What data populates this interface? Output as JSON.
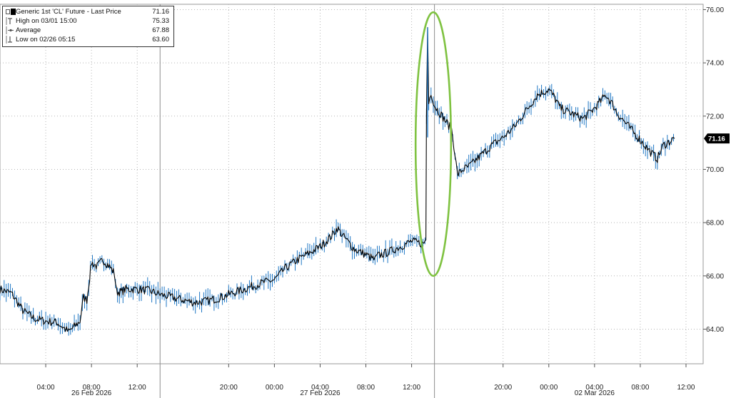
{
  "chart_data": {
    "type": "line",
    "series": [
      {
        "name": "Generic 1st 'CL' Future - Last Price",
        "color": "#000000",
        "highlight_color": "#1f77c4",
        "points": [
          [
            0.0,
            65.5
          ],
          [
            1.0,
            65.35
          ],
          [
            2.0,
            64.7
          ],
          [
            3.0,
            64.4
          ],
          [
            4.0,
            64.3
          ],
          [
            5.0,
            64.25
          ],
          [
            6.0,
            63.9
          ],
          [
            6.5,
            64.1
          ],
          [
            7.0,
            64.3
          ],
          [
            7.3,
            65.2
          ],
          [
            7.6,
            65.1
          ],
          [
            8.0,
            66.5
          ],
          [
            8.5,
            66.35
          ],
          [
            9.0,
            66.6
          ],
          [
            9.5,
            66.4
          ],
          [
            10.0,
            66.1
          ],
          [
            10.2,
            65.4
          ],
          [
            10.6,
            65.4
          ],
          [
            11.0,
            65.5
          ],
          [
            12.0,
            65.5
          ],
          [
            13.0,
            65.45
          ],
          [
            14.0,
            65.3
          ],
          [
            15.0,
            65.2
          ],
          [
            16.0,
            65.1
          ],
          [
            17.0,
            65.0
          ],
          [
            18.0,
            65.05
          ],
          [
            19.0,
            65.15
          ],
          [
            20.0,
            65.3
          ],
          [
            21.0,
            65.45
          ],
          [
            22.0,
            65.6
          ],
          [
            23.0,
            65.75
          ],
          [
            24.0,
            65.85
          ],
          [
            25.0,
            66.3
          ],
          [
            26.0,
            66.6
          ],
          [
            27.0,
            66.85
          ],
          [
            28.0,
            67.1
          ],
          [
            29.0,
            67.5
          ],
          [
            29.5,
            67.8
          ],
          [
            30.0,
            67.5
          ],
          [
            31.0,
            67.0
          ],
          [
            32.0,
            66.8
          ],
          [
            32.8,
            66.6
          ],
          [
            33.0,
            66.75
          ],
          [
            34.0,
            66.9
          ],
          [
            35.0,
            67.1
          ],
          [
            36.0,
            67.3
          ],
          [
            37.0,
            67.2
          ],
          [
            37.25,
            67.35
          ],
          [
            37.3,
            72.0
          ],
          [
            37.4,
            75.33
          ],
          [
            37.5,
            72.5
          ],
          [
            37.7,
            72.9
          ],
          [
            38.0,
            72.4
          ],
          [
            38.5,
            72.1
          ],
          [
            39.0,
            71.8
          ],
          [
            39.5,
            71.5
          ],
          [
            39.8,
            70.6
          ],
          [
            40.0,
            69.8
          ],
          [
            40.5,
            70.0
          ],
          [
            41.0,
            70.1
          ],
          [
            42.0,
            70.5
          ],
          [
            43.0,
            70.9
          ],
          [
            44.0,
            71.2
          ],
          [
            45.0,
            71.6
          ],
          [
            46.0,
            72.2
          ],
          [
            47.0,
            72.8
          ],
          [
            48.0,
            73.0
          ],
          [
            48.5,
            72.7
          ],
          [
            49.0,
            72.3
          ],
          [
            50.0,
            72.1
          ],
          [
            51.0,
            71.9
          ],
          [
            52.0,
            72.3
          ],
          [
            53.0,
            72.8
          ],
          [
            53.5,
            72.5
          ],
          [
            54.0,
            72.1
          ],
          [
            55.0,
            71.6
          ],
          [
            56.0,
            71.1
          ],
          [
            57.0,
            70.6
          ],
          [
            57.5,
            70.4
          ],
          [
            58.0,
            70.9
          ],
          [
            59.0,
            71.16
          ]
        ]
      }
    ],
    "legend": {
      "entries": [
        {
          "icon": "black-square-icon",
          "label": "Generic 1st 'CL' Future - Last Price",
          "value": "71.16"
        },
        {
          "icon": "high-marker-icon",
          "label": "High on 03/01 15:00",
          "value": "75.33"
        },
        {
          "icon": "average-marker-icon",
          "label": "Average",
          "value": "67.88"
        },
        {
          "icon": "low-marker-icon",
          "label": "Low on 02/26 05:15",
          "value": "63.60"
        }
      ],
      "placement": "top-left"
    },
    "y_axis": {
      "side": "right",
      "ylim": [
        62.7,
        76.2
      ],
      "ticks": [
        64,
        66,
        68,
        70,
        72,
        74,
        76
      ],
      "tick_labels": [
        "64.00",
        "66.00",
        "68.00",
        "70.00",
        "72.00",
        "74.00",
        "76.00"
      ]
    },
    "x_axis": {
      "unit": "hours since 26 Feb 2026 00:00",
      "xlim": [
        0,
        61.5
      ],
      "ticks": [
        4,
        8,
        12,
        20,
        24,
        28,
        32,
        36,
        44,
        48,
        52,
        56,
        60
      ],
      "tick_labels": [
        "04:00",
        "08:00",
        "12:00",
        "20:00",
        "00:00",
        "04:00",
        "08:00",
        "12:00",
        "20:00",
        "00:00",
        "04:00",
        "08:00",
        "12:00"
      ],
      "day_separators": [
        14,
        38
      ],
      "date_labels": [
        {
          "at": 8,
          "label": "26 Feb 2026"
        },
        {
          "at": 28,
          "label": "27 Feb 2026"
        },
        {
          "at": 52,
          "label": "02 Mar 2026"
        }
      ]
    },
    "last_value_tag": "71.16",
    "grid": true,
    "annotation": {
      "type": "ellipse",
      "color": "#7fc241",
      "center_x": 37.9,
      "center_y": 70.95,
      "half_width_x": 1.55,
      "half_height_y": 4.95
    }
  }
}
